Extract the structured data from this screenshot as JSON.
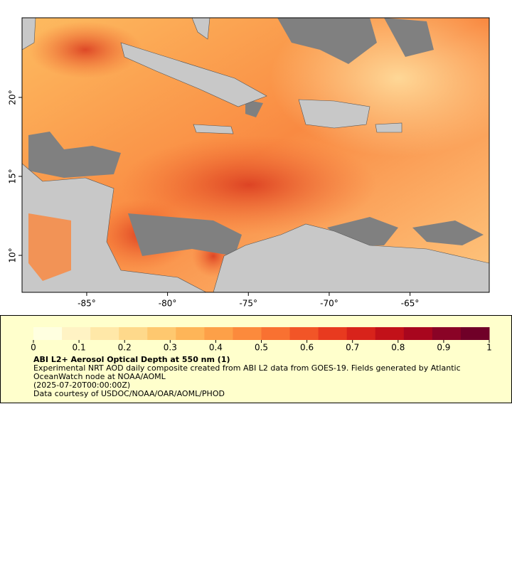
{
  "chart_data": {
    "type": "map",
    "xlim": [
      -89,
      -60.1
    ],
    "ylim": [
      7.66,
      25.04
    ],
    "xticks": [
      {
        "value": -85,
        "label": "-85°"
      },
      {
        "value": -80,
        "label": "-80°"
      },
      {
        "value": -75,
        "label": "-75°"
      },
      {
        "value": -70,
        "label": "-70°"
      },
      {
        "value": -65,
        "label": "-65°"
      }
    ],
    "yticks": [
      {
        "value": 10,
        "label": "10°"
      },
      {
        "value": 15,
        "label": "15°"
      },
      {
        "value": 20,
        "label": "20°"
      }
    ],
    "colorbar": {
      "range": [
        0,
        1
      ],
      "ticks": [
        0,
        0.1,
        0.2,
        0.3,
        0.4,
        0.5,
        0.6,
        0.7,
        0.8,
        0.9,
        1
      ],
      "colors": [
        "#ffffe0",
        "#fff3c4",
        "#ffe8a8",
        "#fed98b",
        "#fec86f",
        "#feb558",
        "#fda048",
        "#fc8a3c",
        "#f97131",
        "#f25527",
        "#e83a1f",
        "#d8231b",
        "#c21119",
        "#a8061e",
        "#8a0326",
        "#700028"
      ]
    },
    "title": "ABI L2+ Aerosol Optical Depth at 550 nm (1)",
    "description": "Experimental NRT AOD daily composite created from ABI L2 data from GOES-19. Fields generated by Atlantic OceanWatch node at NOAA/AOML",
    "time": "(2025-07-20T00:00:00Z)",
    "credit": "Data courtesy of USDOC/NOAA/OAR/AOML/PHOD"
  }
}
